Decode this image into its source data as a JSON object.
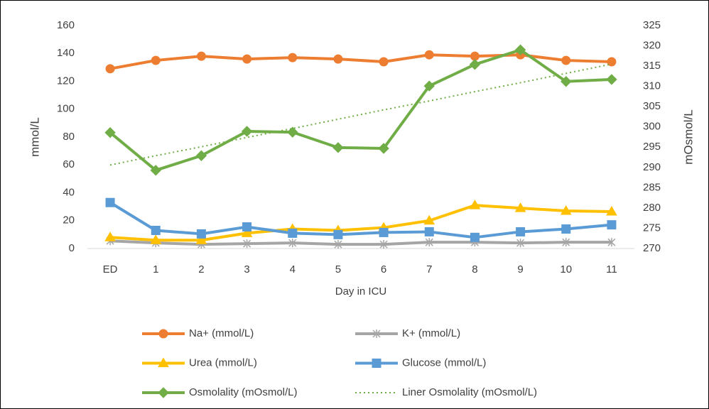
{
  "chart_data": {
    "type": "line",
    "x_label": "Day in ICU",
    "y_label": "mmol/L",
    "y2_label": "mOsmol/L",
    "categories": [
      "ED",
      "1",
      "2",
      "3",
      "4",
      "5",
      "6",
      "7",
      "8",
      "9",
      "10",
      "11"
    ],
    "ylim": [
      0,
      160
    ],
    "yticks": [
      0,
      20,
      40,
      60,
      80,
      100,
      120,
      140,
      160
    ],
    "y2lim": [
      270,
      325
    ],
    "y2ticks": [
      270,
      275,
      280,
      285,
      290,
      295,
      300,
      305,
      310,
      315,
      320,
      325
    ],
    "grid": false,
    "legend": "bottom",
    "series": [
      {
        "name": "Na+ (mmol/L)",
        "color": "#ed7d31",
        "marker": "circle",
        "values": [
          129,
          135,
          138,
          136,
          137,
          136,
          134,
          139,
          138,
          139,
          135,
          134
        ]
      },
      {
        "name": "K+ (mmol/L)",
        "color": "#a5a5a5",
        "marker": "star",
        "values": [
          5.5,
          4,
          3,
          3.5,
          4,
          3,
          3,
          4.5,
          4.5,
          4,
          4.5,
          4.5
        ]
      },
      {
        "name": "Urea (mmol/L)",
        "color": "#ffc000",
        "marker": "triangle",
        "values": [
          8,
          6,
          6,
          11,
          14,
          13,
          15,
          20,
          31,
          29,
          27,
          26.5
        ]
      },
      {
        "name": "Glucose (mmol/L)",
        "color": "#5b9bd5",
        "marker": "square",
        "values": [
          33,
          13,
          10.5,
          15.5,
          11,
          10,
          11.5,
          12,
          8,
          12,
          14,
          17
        ]
      },
      {
        "name": "Osmolality (mOsmol/L)",
        "color": "#70ad47",
        "marker": "diamond",
        "axis": "y2",
        "values": [
          298.6,
          289.3,
          292.9,
          298.9,
          298.7,
          294.9,
          294.7,
          310.1,
          315.4,
          319,
          311.2,
          311.7
        ]
      },
      {
        "name": "Liner Osmolality (mOsmol/L)",
        "color": "#70ad47",
        "marker": "none",
        "style": "dotted",
        "axis": "y2",
        "values": [
          290.6,
          292.9,
          295.1,
          297.4,
          299.6,
          301.9,
          304.2,
          306.4,
          308.7,
          310.9,
          313.2,
          315.5
        ]
      }
    ]
  }
}
